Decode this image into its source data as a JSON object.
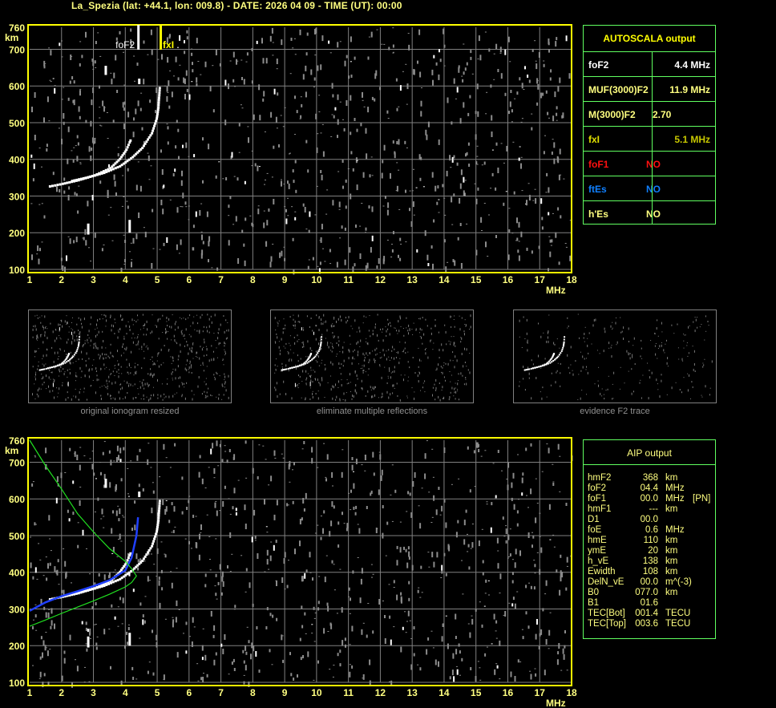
{
  "title": "La_Spezia (lat: +44.1, lon: 009.8) - DATE: 2026 04 09 - TIME (UT): 00:00",
  "colors": {
    "axis": "#ffff00",
    "label": "#ffff80",
    "grid": "#808080",
    "echo": "#ffffff",
    "noise": "#8c8c8c",
    "aip_trace": "#2040ff",
    "profile": "#20e020",
    "table_border": "#60ff60"
  },
  "autoscala": {
    "header": "AUTOSCALA output",
    "rows": [
      {
        "key": "foF2",
        "value": "4.4 MHz",
        "color": "#ffffff"
      },
      {
        "key": "MUF(3000)F2",
        "value": "11.9 MHz",
        "color": "#ffff80"
      },
      {
        "key": "M(3000)F2",
        "value": "2.70",
        "color": "#ffff80"
      },
      {
        "key": "fxI",
        "value": "5.1 MHz",
        "color": "#e0e000",
        "value_color": "#c8c800"
      },
      {
        "key": "foF1",
        "value": "NO",
        "color": "#ff1010"
      },
      {
        "key": "ftEs",
        "value": "NO",
        "color": "#1080ff"
      },
      {
        "key": "h'Es",
        "value": "NO",
        "color": "#ffff80"
      }
    ]
  },
  "aip": {
    "header": "AIP output",
    "rows": [
      {
        "k": "hmF2",
        "v": "368",
        "u": "km",
        "x": ""
      },
      {
        "k": "foF2",
        "v": "04.4",
        "u": "MHz",
        "x": ""
      },
      {
        "k": "foF1",
        "v": "00.0",
        "u": "MHz",
        "x": "[PN]"
      },
      {
        "k": "hmF1",
        "v": "---",
        "u": "km",
        "x": ""
      },
      {
        "k": "D1",
        "v": "00.0",
        "u": "",
        "x": ""
      },
      {
        "k": "foE",
        "v": "0.6",
        "u": "MHz",
        "x": ""
      },
      {
        "k": "hmE",
        "v": "110",
        "u": "km",
        "x": ""
      },
      {
        "k": "ymE",
        "v": "20",
        "u": "km",
        "x": ""
      },
      {
        "k": "h_vE",
        "v": "138",
        "u": "km",
        "x": ""
      },
      {
        "k": "Ewidth",
        "v": "108",
        "u": "km",
        "x": ""
      },
      {
        "k": "DelN_vE",
        "v": "00.0",
        "u": "m^(-3)",
        "x": ""
      },
      {
        "k": "B0",
        "v": "077.0",
        "u": "km",
        "x": ""
      },
      {
        "k": "B1",
        "v": "01.6",
        "u": "",
        "x": ""
      },
      {
        "k": "TEC[Bot]",
        "v": "001.4",
        "u": "TECU",
        "x": ""
      },
      {
        "k": "TEC[Top]",
        "v": "003.6",
        "u": "TECU",
        "x": ""
      }
    ]
  },
  "thumbnails": [
    {
      "label": "original ionogram resized"
    },
    {
      "label": "eliminate multiple reflections"
    },
    {
      "label": "evidence F2 trace"
    }
  ],
  "chart_data": [
    {
      "type": "scatter",
      "title": "",
      "xlabel": "MHz",
      "ylabel": "km",
      "xlim": [
        1,
        18
      ],
      "ylim": [
        100,
        760
      ],
      "x_ticks": [
        "1",
        "2",
        "3",
        "4",
        "5",
        "6",
        "7",
        "8",
        "9",
        "10",
        "11",
        "12",
        "13",
        "14",
        "15",
        "16",
        "17",
        "18"
      ],
      "y_ticks": [
        "760",
        "700",
        "600",
        "500",
        "400",
        "300",
        "200",
        "100"
      ],
      "grid": true,
      "markers": [
        {
          "label": "foF2",
          "x": 4.4,
          "color": "#ffffff"
        },
        {
          "label": "fxI",
          "x": 5.1,
          "color": "#ffff00"
        }
      ],
      "traces": [
        {
          "points": [
            [
              1.6,
              325
            ],
            [
              2.0,
              332
            ],
            [
              2.5,
              342
            ],
            [
              3.0,
              355
            ],
            [
              3.5,
              375
            ],
            [
              3.8,
              400
            ],
            [
              4.0,
              425
            ],
            [
              4.1,
              445
            ],
            [
              4.15,
              455
            ]
          ]
        },
        {
          "points": [
            [
              2.3,
              340
            ],
            [
              2.8,
              350
            ],
            [
              3.3,
              362
            ],
            [
              3.8,
              380
            ],
            [
              4.2,
              405
            ],
            [
              4.5,
              430
            ],
            [
              4.8,
              470
            ],
            [
              4.95,
              510
            ],
            [
              5.0,
              540
            ],
            [
              5.05,
              600
            ]
          ]
        }
      ],
      "vertical_echoes": [
        [
          2.8,
          195,
          225
        ],
        [
          3.35,
          630,
          655
        ],
        [
          4.1,
          200,
          235
        ],
        [
          4.4,
          605,
          620
        ]
      ]
    },
    {
      "type": "line",
      "title": "",
      "xlabel": "MHz",
      "ylabel": "km",
      "xlim": [
        1,
        18
      ],
      "ylim": [
        100,
        760
      ],
      "x_ticks": [
        "1",
        "2",
        "3",
        "4",
        "5",
        "6",
        "7",
        "8",
        "9",
        "10",
        "11",
        "12",
        "13",
        "14",
        "15",
        "16",
        "17",
        "18"
      ],
      "y_ticks": [
        "760",
        "700",
        "600",
        "500",
        "400",
        "300",
        "200",
        "100"
      ],
      "grid": true,
      "series": [
        {
          "role": "aip_trace",
          "color": "#2040ff",
          "points": [
            [
              1.0,
              295
            ],
            [
              1.5,
              318
            ],
            [
              2.0,
              335
            ],
            [
              2.5,
              348
            ],
            [
              3.0,
              362
            ],
            [
              3.5,
              378
            ],
            [
              4.0,
              405
            ],
            [
              4.2,
              440
            ],
            [
              4.35,
              500
            ],
            [
              4.4,
              550
            ]
          ]
        },
        {
          "role": "profile",
          "color": "#20e020",
          "points": [
            [
              1.0,
              253
            ],
            [
              1.5,
              270
            ],
            [
              2.0,
              288
            ],
            [
              2.5,
              305
            ],
            [
              3.0,
              322
            ],
            [
              3.5,
              340
            ],
            [
              4.0,
              360
            ],
            [
              4.2,
              372
            ],
            [
              4.35,
              390
            ],
            [
              4.2,
              410
            ],
            [
              4.0,
              430
            ],
            [
              3.5,
              465
            ],
            [
              3.0,
              510
            ],
            [
              2.5,
              560
            ],
            [
              2.0,
              627
            ],
            [
              1.5,
              690
            ],
            [
              1.0,
              760
            ]
          ]
        }
      ]
    }
  ]
}
